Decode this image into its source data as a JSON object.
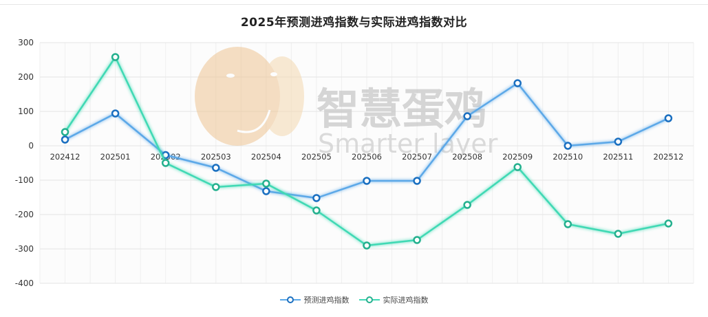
{
  "chart_data": {
    "type": "line",
    "title": "2025年预测进鸡指数与实际进鸡指数对比",
    "xlabel": "",
    "ylabel": "",
    "categories": [
      "202412",
      "202501",
      "202502",
      "202503",
      "202504",
      "202505",
      "202506",
      "202507",
      "202508",
      "202509",
      "202510",
      "202511",
      "202512"
    ],
    "series": [
      {
        "name": "预测进鸡指数",
        "color": "#5ba8e8",
        "marker_color": "#1a6fc0",
        "values": [
          18,
          94,
          -27,
          -64,
          -132,
          -152,
          -102,
          -102,
          86,
          182,
          0,
          12,
          80
        ]
      },
      {
        "name": "实际进鸡指数",
        "color": "#3fd9b4",
        "marker_color": "#24b08e",
        "values": [
          40,
          258,
          -50,
          -120,
          -110,
          -188,
          -290,
          -274,
          -172,
          -62,
          -228,
          -256,
          -226
        ]
      }
    ],
    "ylim": [
      -400,
      300
    ],
    "yticks": [
      300,
      200,
      100,
      0,
      -100,
      -200,
      -300,
      -400
    ],
    "grid": true,
    "legend_position": "bottom"
  },
  "watermark": {
    "text_cn": "智慧蛋鸡",
    "text_en": "Smarter layer"
  },
  "legend": {
    "items": [
      {
        "label": "预测进鸡指数",
        "color": "#5ba8e8",
        "marker": "#1a6fc0"
      },
      {
        "label": "实际进鸡指数",
        "color": "#3fd9b4",
        "marker": "#24b08e"
      }
    ]
  }
}
